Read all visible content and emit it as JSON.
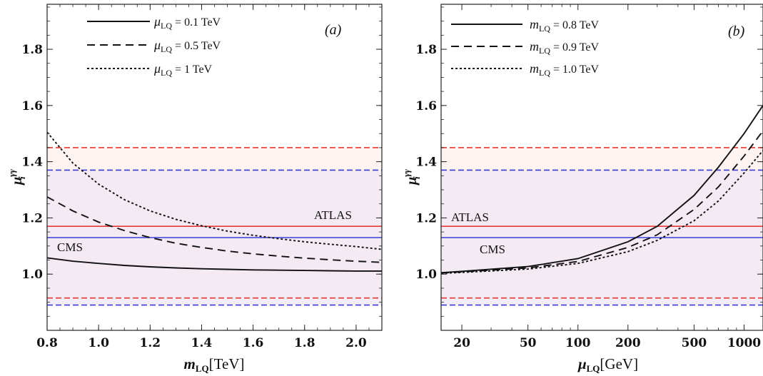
{
  "chart_data": [
    {
      "type": "line",
      "panel_label": "(a)",
      "xlabel": {
        "symbol": "m",
        "sub": "LQ",
        "unit": "[TeV]"
      },
      "ylabel": {
        "symbol": "μ",
        "sub": "i",
        "sup": "γγ"
      },
      "xlim": [
        0.8,
        2.1
      ],
      "ylim": [
        0.8,
        1.96
      ],
      "x_scale": "linear",
      "xticks": [
        0.8,
        1.0,
        1.2,
        1.4,
        1.6,
        1.8,
        2.0
      ],
      "xtick_labels": [
        "0.8",
        "1.0",
        "1.2",
        "1.4",
        "1.6",
        "1.8",
        "2.0"
      ],
      "yticks": [
        1.0,
        1.2,
        1.4,
        1.6,
        1.8
      ],
      "ytick_labels": [
        "1.0",
        "1.2",
        "1.4",
        "1.6",
        "1.8"
      ],
      "legend_position": "top-left",
      "series": [
        {
          "name": {
            "symbol": "μ",
            "sub": "LQ",
            "rest": " = 0.1 TeV"
          },
          "style": "solid",
          "x": [
            0.8,
            0.9,
            1.0,
            1.1,
            1.2,
            1.3,
            1.4,
            1.5,
            1.6,
            1.7,
            1.8,
            1.9,
            2.0,
            2.1
          ],
          "y": [
            1.058,
            1.046,
            1.038,
            1.031,
            1.026,
            1.022,
            1.019,
            1.017,
            1.015,
            1.014,
            1.013,
            1.012,
            1.011,
            1.011
          ]
        },
        {
          "name": {
            "symbol": "μ",
            "sub": "LQ",
            "rest": " = 0.5 TeV"
          },
          "style": "dashed",
          "x": [
            0.8,
            0.9,
            1.0,
            1.1,
            1.2,
            1.3,
            1.4,
            1.5,
            1.6,
            1.7,
            1.8,
            1.9,
            2.0,
            2.1
          ],
          "y": [
            1.275,
            1.225,
            1.185,
            1.155,
            1.13,
            1.11,
            1.095,
            1.082,
            1.072,
            1.064,
            1.057,
            1.051,
            1.046,
            1.042
          ]
        },
        {
          "name": {
            "symbol": "μ",
            "sub": "LQ",
            "rest": " = 1 TeV"
          },
          "style": "dotted",
          "x": [
            0.8,
            0.9,
            1.0,
            1.1,
            1.2,
            1.3,
            1.4,
            1.5,
            1.6,
            1.7,
            1.8,
            1.9,
            2.0,
            2.1
          ],
          "y": [
            1.505,
            1.395,
            1.32,
            1.265,
            1.225,
            1.195,
            1.172,
            1.153,
            1.138,
            1.126,
            1.115,
            1.106,
            1.098,
            1.088
          ]
        }
      ],
      "reference_bands": [
        {
          "name": "ATLAS",
          "color": "#e53935",
          "central": 1.17,
          "upper": 1.45,
          "lower": 0.915,
          "fill": "#fdf1ee"
        },
        {
          "name": "CMS",
          "color": "#3d3ddb",
          "central": 1.13,
          "upper": 1.37,
          "lower": 0.89,
          "fill": "#f1e8f3"
        }
      ]
    },
    {
      "type": "line",
      "panel_label": "(b)",
      "xlabel": {
        "symbol": "μ",
        "sub": "LQ",
        "unit": "[GeV]"
      },
      "ylabel": {
        "symbol": "μ",
        "sub": "i",
        "sup": "γγ"
      },
      "xlim": [
        15,
        1300
      ],
      "ylim": [
        0.8,
        1.96
      ],
      "x_scale": "log",
      "xticks": [
        20,
        50,
        100,
        200,
        500,
        1000
      ],
      "xtick_labels": [
        "20",
        "50",
        "100",
        "200",
        "500",
        "1000"
      ],
      "yticks": [
        1.0,
        1.2,
        1.4,
        1.6,
        1.8
      ],
      "ytick_labels": [
        "1.0",
        "1.2",
        "1.4",
        "1.6",
        "1.8"
      ],
      "legend_position": "top-left",
      "series": [
        {
          "name": {
            "symbol": "m",
            "sub": "LQ",
            "rest": " = 0.8 TeV"
          },
          "style": "solid",
          "x": [
            15,
            20,
            50,
            100,
            200,
            300,
            500,
            700,
            1000,
            1300
          ],
          "y": [
            1.005,
            1.01,
            1.027,
            1.055,
            1.115,
            1.17,
            1.28,
            1.38,
            1.5,
            1.6
          ]
        },
        {
          "name": {
            "symbol": "m",
            "sub": "LQ",
            "rest": " = 0.9 TeV"
          },
          "style": "dashed",
          "x": [
            15,
            20,
            50,
            100,
            200,
            300,
            500,
            700,
            1000,
            1300
          ],
          "y": [
            1.004,
            1.008,
            1.022,
            1.045,
            1.095,
            1.14,
            1.23,
            1.31,
            1.42,
            1.51
          ]
        },
        {
          "name": {
            "symbol": "m",
            "sub": "LQ",
            "rest": " = 1.0 TeV"
          },
          "style": "dotted",
          "x": [
            15,
            20,
            50,
            100,
            200,
            300,
            500,
            700,
            1000,
            1300
          ],
          "y": [
            1.003,
            1.006,
            1.018,
            1.038,
            1.08,
            1.12,
            1.19,
            1.26,
            1.36,
            1.44
          ]
        }
      ],
      "reference_bands": [
        {
          "name": "ATLAS",
          "color": "#e53935",
          "central": 1.17,
          "upper": 1.45,
          "lower": 0.915,
          "fill": "#fdf1ee"
        },
        {
          "name": "CMS",
          "color": "#3d3ddb",
          "central": 1.13,
          "upper": 1.37,
          "lower": 0.89,
          "fill": "#f1e8f3"
        }
      ]
    }
  ]
}
